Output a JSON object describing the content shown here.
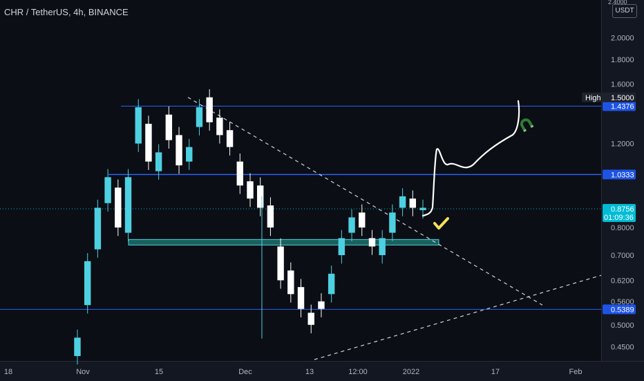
{
  "header": {
    "title": "CHR / TetherUS, 4h, BINANCE",
    "currency": "USDT",
    "axis_top_label": "2.4000"
  },
  "colors": {
    "background": "#0b0e14",
    "candle_up": "#4dd0e1",
    "candle_down": "#ffffff",
    "level_line": "#2962ff",
    "support_zone": "#26a69a",
    "trendline": "#d1d4dc",
    "projection": "#ffffff",
    "current_price_tag": "#00bcd4",
    "level_tag": "#1e53e5",
    "check_mark": "#f5e05b",
    "magnet_icon": "#2e7d32"
  },
  "chart_data": {
    "type": "candlestick",
    "title": "CHR / TetherUS, 4h, BINANCE",
    "y_scale": "log",
    "ylim": [
      0.42,
      2.4
    ],
    "y_ticks": [
      "2.0000",
      "1.8000",
      "1.6000",
      "1.2000",
      "0.8000",
      "0.7000",
      "0.6200",
      "0.5600",
      "0.5000",
      "0.4500"
    ],
    "x_ticks": [
      "18",
      "Nov",
      "15",
      "Dec",
      "13",
      "12:00",
      "2022",
      "17",
      "Feb"
    ],
    "price_series": [
      [
        0.43,
        0.47
      ],
      [
        0.55,
        0.68
      ],
      [
        0.72,
        0.88
      ],
      [
        0.9,
        1.02
      ],
      [
        0.97,
        0.8
      ],
      [
        0.78,
        1.02
      ],
      [
        1.2,
        1.43
      ],
      [
        1.32,
        1.1
      ],
      [
        1.05,
        1.15
      ],
      [
        1.38,
        1.22
      ],
      [
        1.25,
        1.08
      ],
      [
        1.1,
        1.18
      ],
      [
        1.3,
        1.43
      ],
      [
        1.5,
        1.33
      ],
      [
        1.36,
        1.25
      ],
      [
        1.28,
        1.18
      ],
      [
        1.1,
        0.98
      ],
      [
        1.0,
        0.92
      ],
      [
        0.98,
        0.88
      ],
      [
        0.89,
        0.8
      ],
      [
        0.73,
        0.62
      ],
      [
        0.65,
        0.58
      ],
      [
        0.6,
        0.54
      ],
      [
        0.53,
        0.5
      ],
      [
        0.56,
        0.54
      ],
      [
        0.58,
        0.64
      ],
      [
        0.7,
        0.76
      ],
      [
        0.78,
        0.84
      ],
      [
        0.86,
        0.8
      ],
      [
        0.76,
        0.73
      ],
      [
        0.7,
        0.76
      ],
      [
        0.78,
        0.86
      ],
      [
        0.88,
        0.93
      ],
      [
        0.92,
        0.88
      ],
      [
        0.87,
        0.88
      ]
    ],
    "levels": [
      {
        "price": 1.4376,
        "label": "1.4376"
      },
      {
        "price": 1.0333,
        "label": "1.0333"
      },
      {
        "price": 0.5389,
        "label": "0.5389"
      }
    ],
    "high_marker": {
      "label": "High",
      "value": "1.5000"
    },
    "current_price": {
      "value": "0.8756",
      "countdown": "01:09:36"
    },
    "support_zone": {
      "low": 0.735,
      "high": 0.755
    },
    "annotations": [
      "descending dashed trendline",
      "ascending dashed trendline",
      "projected path",
      "check mark",
      "magnet icon"
    ]
  }
}
